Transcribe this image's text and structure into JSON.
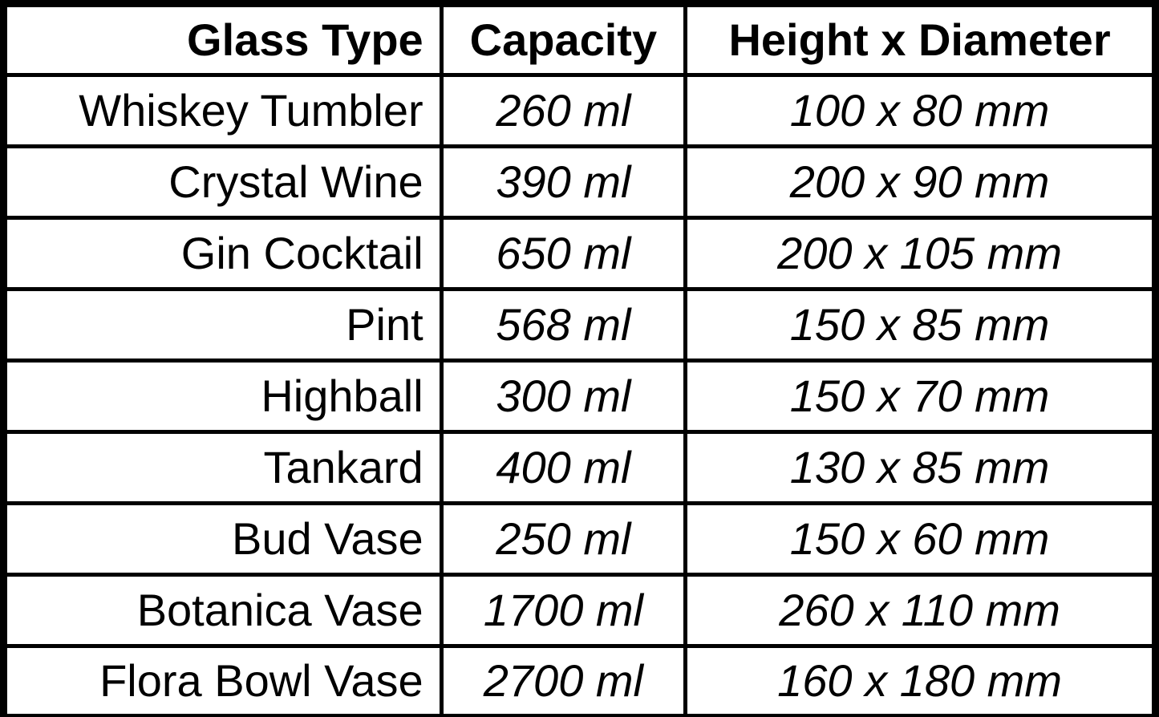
{
  "chart_data": {
    "type": "table",
    "columns": [
      "Glass Type",
      "Capacity",
      "Height x Diameter"
    ],
    "rows": [
      [
        "Whiskey Tumbler",
        "260 ml",
        "100 x 80 mm"
      ],
      [
        "Crystal Wine",
        "390 ml",
        "200 x 90 mm"
      ],
      [
        "Gin Cocktail",
        "650 ml",
        "200 x 105 mm"
      ],
      [
        "Pint",
        "568 ml",
        "150 x 85 mm"
      ],
      [
        "Highball",
        "300 ml",
        "150 x 70 mm"
      ],
      [
        "Tankard",
        "400 ml",
        "130 x 85 mm"
      ],
      [
        "Bud Vase",
        "250 ml",
        "150 x 60 mm"
      ],
      [
        "Botanica Vase",
        "1700 ml",
        "260 x 110 mm"
      ],
      [
        "Flora Bowl Vase",
        "2700 ml",
        "160 x 180 mm"
      ]
    ]
  },
  "colors": {
    "border": "#000000",
    "text": "#000000",
    "background": "#ffffff"
  }
}
